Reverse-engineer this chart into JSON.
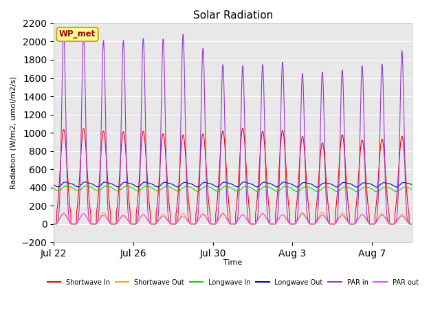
{
  "title": "Solar Radiation",
  "ylabel": "Radiation (W/m2, umol/m2/s)",
  "xlabel": "Time",
  "ylim": [
    -200,
    2200
  ],
  "yticks": [
    -200,
    0,
    200,
    400,
    600,
    800,
    1000,
    1200,
    1400,
    1600,
    1800,
    2000,
    2200
  ],
  "fig_bg_color": "#ffffff",
  "plot_bg_color": "#e8e8e8",
  "grid_color": "#ffffff",
  "station_label": "WP_met",
  "station_box_facecolor": "#ffff99",
  "station_box_edgecolor": "#ccaa00",
  "legend": [
    {
      "label": "Shortwave In",
      "color": "#ff0000"
    },
    {
      "label": "Shortwave Out",
      "color": "#ffa500"
    },
    {
      "label": "Longwave In",
      "color": "#00dd00"
    },
    {
      "label": "Longwave Out",
      "color": "#0000dd"
    },
    {
      "label": "PAR in",
      "color": "#9933cc"
    },
    {
      "label": "PAR out",
      "color": "#ff44ff"
    }
  ],
  "x_tick_positions": [
    0,
    4,
    8,
    12,
    16
  ],
  "x_tick_labels": [
    "Jul 22",
    "Jul 26",
    "Jul 30",
    "Aug 3",
    "Aug 7"
  ],
  "n_days": 18,
  "pts_per_day": 288
}
